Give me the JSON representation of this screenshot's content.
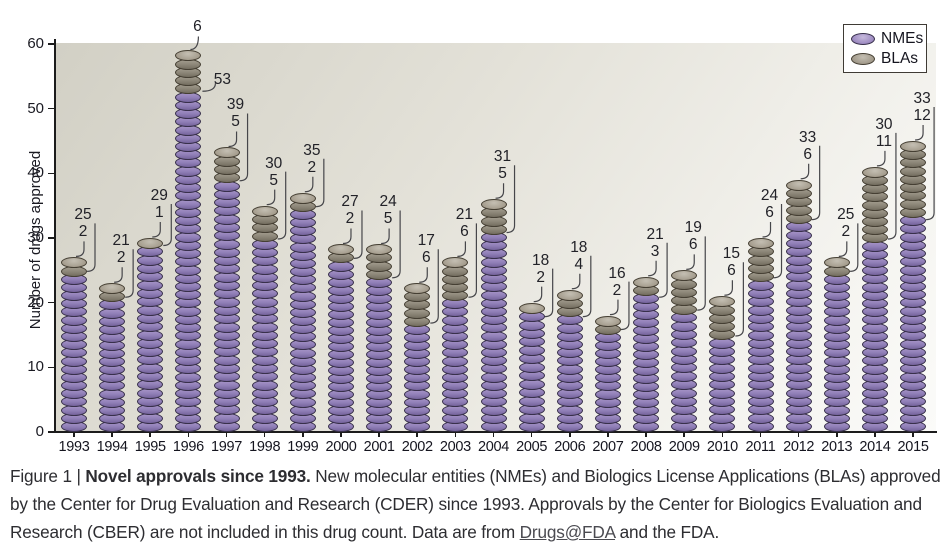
{
  "chart_data": {
    "type": "bar",
    "stacked": true,
    "categories": [
      1993,
      1994,
      1995,
      1996,
      1997,
      1998,
      1999,
      2000,
      2001,
      2002,
      2003,
      2004,
      2005,
      2006,
      2007,
      2008,
      2009,
      2010,
      2011,
      2012,
      2013,
      2014,
      2015
    ],
    "series": [
      {
        "name": "NMEs",
        "color": "#9180b8",
        "values": [
          25,
          21,
          29,
          53,
          39,
          30,
          35,
          27,
          24,
          17,
          21,
          31,
          18,
          18,
          16,
          21,
          19,
          15,
          24,
          33,
          25,
          30,
          33
        ]
      },
      {
        "name": "BLAs",
        "color": "#8d8779",
        "values": [
          2,
          2,
          1,
          6,
          5,
          5,
          2,
          2,
          5,
          6,
          6,
          5,
          2,
          4,
          2,
          3,
          6,
          6,
          6,
          6,
          2,
          11,
          12
        ]
      }
    ],
    "title": "",
    "xlabel": "",
    "ylabel": "Number of drugs approved",
    "ylim": [
      0,
      60
    ],
    "yticks": [
      0,
      10,
      20,
      30,
      40,
      50,
      60
    ],
    "grid": false,
    "legend_position": "top-right"
  },
  "legend": {
    "nmes_label": "NMEs",
    "blas_label": "BLAs"
  },
  "caption": {
    "prefix": "Figure 1 | ",
    "title": "Novel approvals since 1993.",
    "body_1": " New molecular entities (NMEs) and Biologics License Applications (BLAs) approved by the Center for Drug Evaluation and Research (CDER) since 1993. Approvals by the Center for Biologics Evaluation and Research (CBER) are not included in this drug count. Data are from ",
    "link": "Drugs@FDA",
    "body_2": " and the FDA."
  },
  "colors": {
    "nme_purple": "#9180b8",
    "bla_gray": "#8d8779",
    "plot_bg_dark": "#d2d0c5",
    "plot_bg_light": "#fbfbf9",
    "axis": "#1c1c1c",
    "label_text": "#222228",
    "leader_line": "#46464a"
  }
}
